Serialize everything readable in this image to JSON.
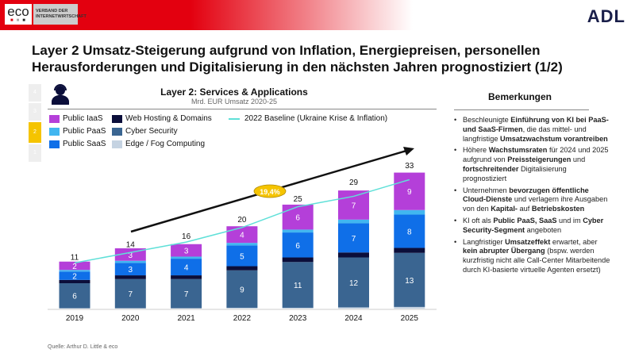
{
  "header": {
    "eco_logo": "eco",
    "eco_tagline": "VERBAND DER INTERNETWIRTSCHAFT",
    "adl_logo": "ADL"
  },
  "title": "Layer 2 Umsatz-Steigerung aufgrund von Inflation, Energiepreisen, personellen Herausforderungen und Digitalisierung in den nächsten Jahren prognostiziert (1/2)",
  "layer_nav": [
    "4",
    "3",
    "2",
    "1"
  ],
  "icon": "person-headset-icon",
  "chart_data": {
    "type": "bar",
    "stacked": true,
    "title": "Layer 2: Services & Applications",
    "subtitle": "Mrd. EUR Umsatz 2020-25",
    "categories": [
      "2019",
      "2020",
      "2021",
      "2022",
      "2023",
      "2024",
      "2025"
    ],
    "totals": [
      11,
      14,
      16,
      20,
      25,
      29,
      33
    ],
    "series": [
      {
        "name": "Edge / Fog Computing",
        "color": "#c5d3e2",
        "values": [
          0.1,
          0.1,
          0.1,
          0.2,
          0.2,
          0.3,
          0.4
        ],
        "labeled": false
      },
      {
        "name": "Cyber Security",
        "color": "#3a6591",
        "values": [
          6,
          7,
          7,
          9,
          11,
          12,
          13
        ],
        "labeled": true
      },
      {
        "name": "Web Hosting & Domains",
        "color": "#0b0e3a",
        "values": [
          0.8,
          0.9,
          0.9,
          1.0,
          1.1,
          1.2,
          1.2
        ],
        "labeled": false
      },
      {
        "name": "Public SaaS",
        "color": "#0f6fe8",
        "values": [
          2,
          3,
          4,
          5,
          6,
          7,
          8
        ],
        "labeled": true
      },
      {
        "name": "Public PaaS",
        "color": "#41b6f0",
        "values": [
          0.4,
          0.5,
          0.5,
          0.6,
          0.7,
          0.9,
          1.1
        ],
        "labeled": false
      },
      {
        "name": "Public IaaS",
        "color": "#b43fd9",
        "values": [
          2,
          3,
          3,
          4,
          6,
          7,
          9
        ],
        "labeled": true
      }
    ],
    "baseline": {
      "name": "2022 Baseline (Ukraine Krise & Inflation)",
      "color": "#5fe0d8",
      "values": [
        11,
        13.5,
        16,
        19.5,
        24.5,
        27,
        31
      ]
    },
    "cagr_label": "19,4%",
    "ylim": [
      0,
      36
    ]
  },
  "legend": [
    {
      "name": "Public IaaS",
      "color": "#b43fd9"
    },
    {
      "name": "Public PaaS",
      "color": "#41b6f0"
    },
    {
      "name": "Public SaaS",
      "color": "#0f6fe8"
    },
    {
      "name": "Web Hosting & Domains",
      "color": "#0b0e3a"
    },
    {
      "name": "Cyber Security",
      "color": "#3a6591"
    },
    {
      "name": "Edge / Fog Computing",
      "color": "#c5d3e2"
    },
    {
      "name": "2022 Baseline (Ukraine Krise & Inflation)",
      "color": "#5fe0d8"
    }
  ],
  "remarks": {
    "title": "Bemerkungen",
    "items": [
      [
        [
          "Beschleunigte ",
          false
        ],
        [
          "Einführung von KI bei PaaS- und SaaS-Firmen",
          true
        ],
        [
          ", die das mittel- und langfristige ",
          false
        ],
        [
          "Umsatzwachstum vorantreiben",
          true
        ]
      ],
      [
        [
          "Höhere ",
          false
        ],
        [
          "Wachstumsraten",
          true
        ],
        [
          " für 2024 und 2025 aufgrund von ",
          false
        ],
        [
          "Preissteigerungen",
          true
        ],
        [
          " und ",
          false
        ],
        [
          "fortschreitender",
          true
        ],
        [
          " Digitalisierung prognostiziert",
          false
        ]
      ],
      [
        [
          "Unternehmen ",
          false
        ],
        [
          "bevorzugen öffentliche Cloud-Dienste",
          true
        ],
        [
          " und verlagern ihre Ausgaben von den ",
          false
        ],
        [
          "Kapital-",
          true
        ],
        [
          " auf ",
          false
        ],
        [
          "Betriebskosten",
          true
        ]
      ],
      [
        [
          "KI oft als ",
          false
        ],
        [
          "Public PaaS, SaaS",
          true
        ],
        [
          " und im ",
          false
        ],
        [
          "Cyber Security-Segment",
          true
        ],
        [
          " angeboten",
          false
        ]
      ],
      [
        [
          "Langfristiger ",
          false
        ],
        [
          "Umsatzeffekt",
          true
        ],
        [
          " erwartet, aber ",
          false
        ],
        [
          "kein abrupter Übergang",
          true
        ],
        [
          " (bspw. werden kurzfristig nicht alle Call-Center Mitarbeitende durch KI-basierte virtuelle Agenten ersetzt)",
          false
        ]
      ]
    ]
  },
  "source": "Quelle: Arthur D. Little & eco"
}
